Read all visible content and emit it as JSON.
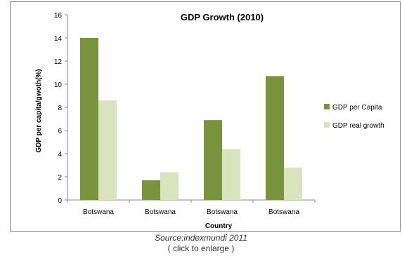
{
  "chart_data": {
    "type": "bar",
    "title": "GDP Growth (2010)",
    "xlabel": "Country",
    "ylabel": "GDP per capita/gwoth(%)",
    "categories": [
      "Botswana",
      "Botswana",
      "Botswana",
      "Botswana"
    ],
    "series": [
      {
        "name": "GDP per Capita",
        "values": [
          14.0,
          1.7,
          6.9,
          10.7
        ],
        "color": "#77933c"
      },
      {
        "name": "GDP real growth",
        "values": [
          8.6,
          2.4,
          4.4,
          2.8
        ],
        "color": "#d7e4bd"
      }
    ],
    "ylim": [
      0,
      16
    ],
    "yticks": [
      0,
      2,
      4,
      6,
      8,
      10,
      12,
      14,
      16
    ],
    "grid": false,
    "legend": "right"
  },
  "caption": {
    "source": "Source:indexmundi 2011",
    "enlarge": "( click to enlarge )"
  }
}
